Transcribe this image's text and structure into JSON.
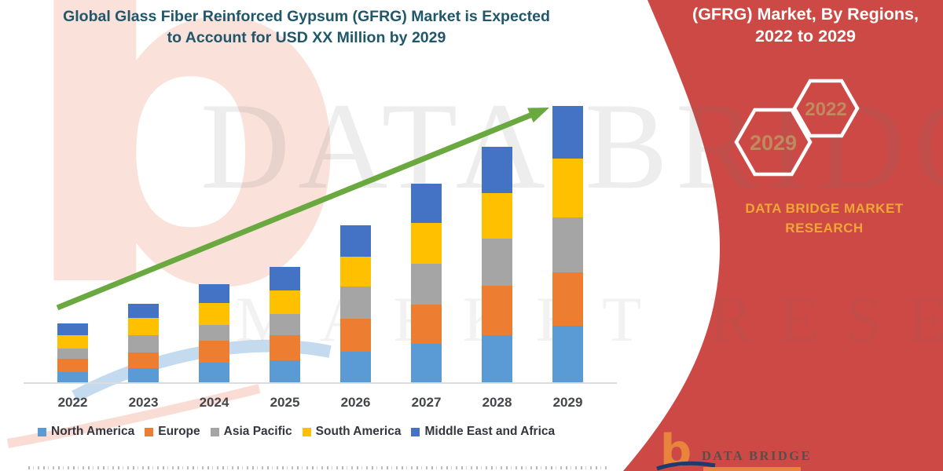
{
  "page_title": {
    "line1": "Global Glass Fiber Reinforced Gypsum (GFRG) Market is Expected",
    "line2": "to Account for USD XX Million by 2029"
  },
  "banner": {
    "bg_color": "#CD4945",
    "title_line1": "(GFRG) Market, By Regions,",
    "title_line2": "2022 to 2029",
    "hexagons": [
      {
        "label": "2029"
      },
      {
        "label": "2022"
      }
    ],
    "hex_label_color": "#C08A5E",
    "brand_line1": "DATA BRIDGE MARKET",
    "brand_line2": "RESEARCH",
    "brand_color": "#F0A636"
  },
  "watermark": {
    "glyph": "b",
    "line1": "DATA BRIDGE",
    "line2": "MARKET RESEARCH"
  },
  "footer_logo": {
    "glyph": "b",
    "name_text": "DATA BRIDGE"
  },
  "chart_data": {
    "type": "bar",
    "stacked": true,
    "title": "Global Glass Fiber Reinforced Gypsum (GFRG) Market is Expected to Account for USD XX Million by 2029",
    "categories": [
      "2022",
      "2023",
      "2024",
      "2025",
      "2026",
      "2027",
      "2028",
      "2029"
    ],
    "series": [
      {
        "name": "North America",
        "color": "#5B9BD5",
        "values": [
          13,
          18,
          25,
          28,
          39,
          49,
          60,
          72
        ]
      },
      {
        "name": "Europe",
        "color": "#ED7D31",
        "values": [
          17,
          20,
          28,
          32,
          42,
          50,
          63,
          68
        ]
      },
      {
        "name": "Asia Pacific",
        "color": "#A5A5A5",
        "values": [
          13,
          22,
          20,
          27,
          41,
          52,
          60,
          70
        ]
      },
      {
        "name": "South America",
        "color": "#FFC000",
        "values": [
          17,
          22,
          28,
          30,
          38,
          52,
          58,
          75
        ]
      },
      {
        "name": "Middle East and Africa",
        "color": "#4472C4",
        "values": [
          15,
          18,
          24,
          30,
          40,
          50,
          59,
          67
        ]
      }
    ],
    "totals": [
      75,
      100,
      125,
      147,
      200,
      253,
      300,
      352
    ],
    "values_unit": "relative height index (USD value shown as XX)",
    "xlabel": "",
    "ylabel": "",
    "y_axis_shown": false,
    "gridlines": false,
    "legend_position": "bottom",
    "trend_arrow": {
      "direction": "up",
      "color": "#69A93F",
      "from_category": "2022",
      "to_category": "2029"
    }
  }
}
